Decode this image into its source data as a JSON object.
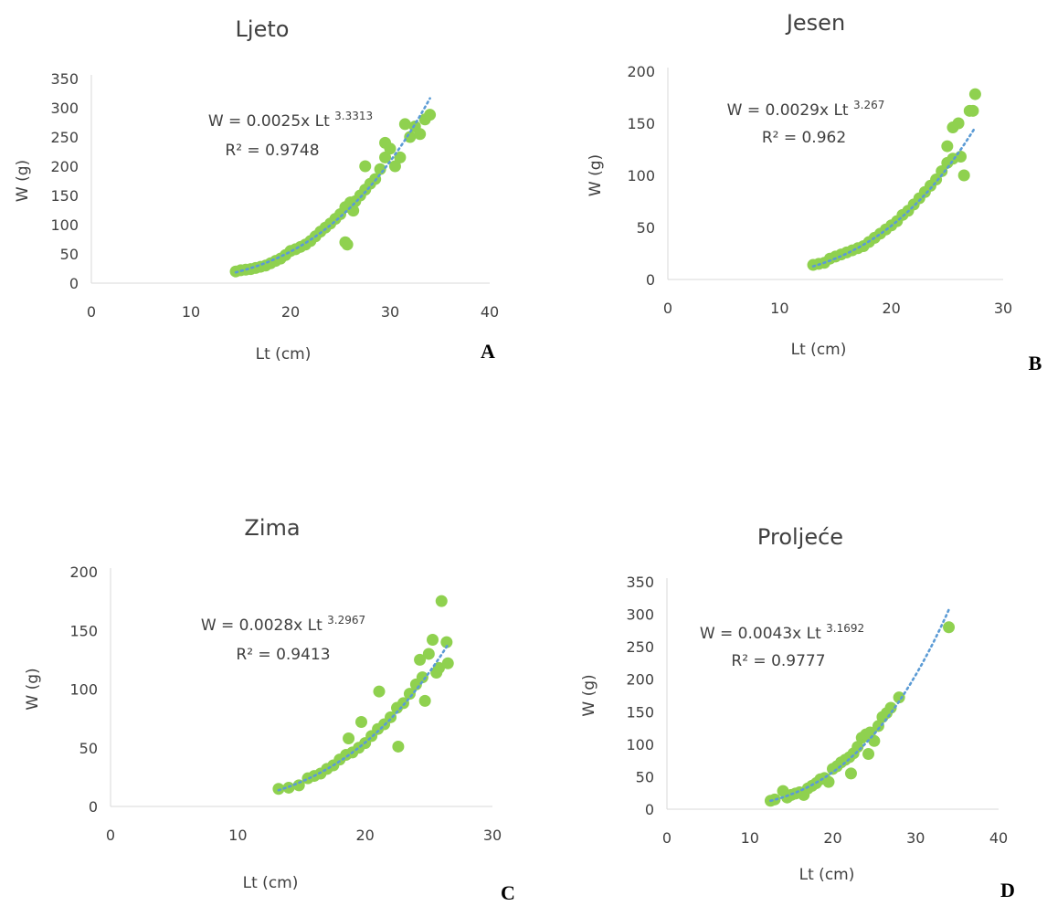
{
  "colors": {
    "points": "#8fd14f",
    "trendline": "#5b9bd5",
    "text": "#404040",
    "axis": "#d9d9d9"
  },
  "chart_data": [
    {
      "type": "scatter",
      "title": "Ljeto",
      "panel_label": "A",
      "xlabel": "Lt (cm)",
      "ylabel": "W (g)",
      "xlim": [
        0,
        40
      ],
      "ylim": [
        0,
        350
      ],
      "xticks": [
        "0",
        "10",
        "20",
        "30",
        "40"
      ],
      "yticks": [
        "0",
        "50",
        "100",
        "150",
        "200",
        "250",
        "300",
        "350"
      ],
      "grid": false,
      "equation": "W = 0.0025x Lt",
      "exponent": "3.3313",
      "r2": "R² = 0.9748",
      "trend": {
        "a": 0.0025,
        "b": 3.3313,
        "x_range": [
          14.5,
          34
        ]
      },
      "points": [
        [
          14.5,
          20
        ],
        [
          15,
          22
        ],
        [
          15.5,
          23
        ],
        [
          16,
          24
        ],
        [
          16.5,
          26
        ],
        [
          17,
          28
        ],
        [
          17.5,
          30
        ],
        [
          18,
          34
        ],
        [
          18.5,
          38
        ],
        [
          19,
          42
        ],
        [
          19.5,
          48
        ],
        [
          20,
          55
        ],
        [
          20.5,
          58
        ],
        [
          21,
          62
        ],
        [
          21.5,
          66
        ],
        [
          22,
          72
        ],
        [
          22.5,
          80
        ],
        [
          23,
          88
        ],
        [
          23.5,
          95
        ],
        [
          24,
          102
        ],
        [
          24.5,
          110
        ],
        [
          25,
          118
        ],
        [
          25.5,
          130
        ],
        [
          25.5,
          70
        ],
        [
          25.7,
          66
        ],
        [
          26,
          138
        ],
        [
          26.3,
          124
        ],
        [
          26.5,
          140
        ],
        [
          27,
          150
        ],
        [
          27.5,
          160
        ],
        [
          27.5,
          200
        ],
        [
          28,
          170
        ],
        [
          28.5,
          178
        ],
        [
          29,
          195
        ],
        [
          29.5,
          215
        ],
        [
          29.5,
          240
        ],
        [
          30,
          230
        ],
        [
          30.5,
          200
        ],
        [
          31,
          215
        ],
        [
          31.5,
          272
        ],
        [
          32,
          250
        ],
        [
          32.5,
          268
        ],
        [
          33,
          255
        ],
        [
          33.5,
          280
        ],
        [
          34,
          288
        ]
      ]
    },
    {
      "type": "scatter",
      "title": "Jesen",
      "panel_label": "B",
      "xlabel": "Lt (cm)",
      "ylabel": "W (g)",
      "xlim": [
        0,
        30
      ],
      "ylim": [
        0,
        200
      ],
      "xticks": [
        "0",
        "10",
        "20",
        "30"
      ],
      "yticks": [
        "0",
        "50",
        "100",
        "150",
        "200"
      ],
      "grid": false,
      "equation": "W = 0.0029x Lt",
      "exponent": "3.267",
      "r2": "R² = 0.962",
      "trend": {
        "a": 0.0029,
        "b": 3.267,
        "x_range": [
          13,
          27.5
        ]
      },
      "points": [
        [
          13,
          14
        ],
        [
          13.5,
          15
        ],
        [
          14,
          16
        ],
        [
          14.5,
          20
        ],
        [
          15,
          22
        ],
        [
          15.5,
          24
        ],
        [
          16,
          26
        ],
        [
          16.5,
          28
        ],
        [
          17,
          30
        ],
        [
          17.5,
          32
        ],
        [
          18,
          36
        ],
        [
          18.5,
          40
        ],
        [
          19,
          44
        ],
        [
          19.5,
          48
        ],
        [
          20,
          52
        ],
        [
          20.5,
          56
        ],
        [
          21,
          62
        ],
        [
          21.5,
          66
        ],
        [
          22,
          72
        ],
        [
          22.5,
          78
        ],
        [
          23,
          84
        ],
        [
          23.5,
          90
        ],
        [
          24,
          96
        ],
        [
          24.5,
          104
        ],
        [
          25,
          112
        ],
        [
          25,
          128
        ],
        [
          25.5,
          116
        ],
        [
          25.5,
          146
        ],
        [
          26,
          150
        ],
        [
          26.2,
          118
        ],
        [
          26.5,
          100
        ],
        [
          27,
          162
        ],
        [
          27.3,
          162
        ],
        [
          27.5,
          178
        ]
      ]
    },
    {
      "type": "scatter",
      "title": "Zima",
      "panel_label": "C",
      "xlabel": "Lt (cm)",
      "ylabel": "W (g)",
      "xlim": [
        0,
        30
      ],
      "ylim": [
        0,
        200
      ],
      "xticks": [
        "0",
        "10",
        "20",
        "30"
      ],
      "yticks": [
        "0",
        "50",
        "100",
        "150",
        "200"
      ],
      "grid": false,
      "equation": "W = 0.0028x Lt",
      "exponent": "3.2967",
      "r2": "R² = 0.9413",
      "trend": {
        "a": 0.0028,
        "b": 3.2967,
        "x_range": [
          13.2,
          26.5
        ]
      },
      "points": [
        [
          13.2,
          15
        ],
        [
          14,
          16
        ],
        [
          14.8,
          18
        ],
        [
          15.5,
          24
        ],
        [
          16,
          26
        ],
        [
          16.5,
          28
        ],
        [
          17,
          32
        ],
        [
          17.5,
          35
        ],
        [
          18,
          40
        ],
        [
          18.5,
          44
        ],
        [
          18.7,
          58
        ],
        [
          19,
          46
        ],
        [
          19.5,
          50
        ],
        [
          19.7,
          72
        ],
        [
          20,
          54
        ],
        [
          20.5,
          60
        ],
        [
          21,
          66
        ],
        [
          21.1,
          98
        ],
        [
          21.5,
          70
        ],
        [
          22,
          76
        ],
        [
          22.5,
          84
        ],
        [
          22.6,
          51
        ],
        [
          23,
          88
        ],
        [
          23.5,
          96
        ],
        [
          24,
          104
        ],
        [
          24.3,
          125
        ],
        [
          24.5,
          110
        ],
        [
          24.7,
          90
        ],
        [
          25,
          130
        ],
        [
          25.3,
          142
        ],
        [
          25.6,
          114
        ],
        [
          25.8,
          118
        ],
        [
          26,
          175
        ],
        [
          26.4,
          140
        ],
        [
          26.5,
          122
        ]
      ]
    },
    {
      "type": "scatter",
      "title": "Proljeće",
      "panel_label": "D",
      "xlabel": "Lt (cm)",
      "ylabel": "W (g)",
      "xlim": [
        0,
        40
      ],
      "ylim": [
        0,
        350
      ],
      "xticks": [
        "0",
        "10",
        "20",
        "30",
        "40"
      ],
      "yticks": [
        "0",
        "50",
        "100",
        "150",
        "200",
        "250",
        "300",
        "350"
      ],
      "grid": false,
      "equation": "W = 0.0043x Lt",
      "exponent": "3.1692",
      "r2": "R² = 0.9777",
      "trend": {
        "a": 0.0043,
        "b": 3.1692,
        "x_range": [
          12.5,
          34
        ]
      },
      "points": [
        [
          12.5,
          13
        ],
        [
          13,
          15
        ],
        [
          14,
          28
        ],
        [
          14.5,
          18
        ],
        [
          15,
          22
        ],
        [
          15.5,
          24
        ],
        [
          16,
          26
        ],
        [
          16.5,
          22
        ],
        [
          17,
          32
        ],
        [
          17.5,
          36
        ],
        [
          18,
          40
        ],
        [
          18.5,
          46
        ],
        [
          19,
          48
        ],
        [
          19.5,
          42
        ],
        [
          20,
          62
        ],
        [
          20.5,
          66
        ],
        [
          21,
          72
        ],
        [
          21.5,
          76
        ],
        [
          22,
          80
        ],
        [
          22.2,
          55
        ],
        [
          22.5,
          86
        ],
        [
          23,
          96
        ],
        [
          23.5,
          110
        ],
        [
          24,
          115
        ],
        [
          24.3,
          85
        ],
        [
          24.5,
          118
        ],
        [
          25,
          105
        ],
        [
          25.5,
          128
        ],
        [
          26,
          142
        ],
        [
          26.5,
          148
        ],
        [
          27,
          156
        ],
        [
          28,
          172
        ],
        [
          34,
          280
        ]
      ]
    }
  ]
}
